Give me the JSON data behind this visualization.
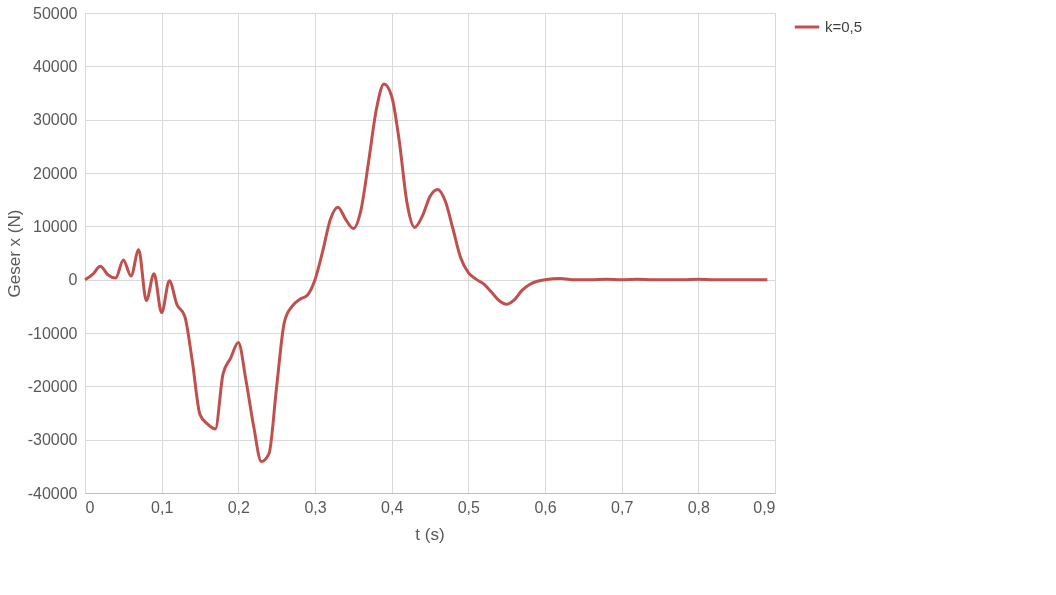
{
  "chart_data": {
    "type": "line",
    "xlabel": "t (s)",
    "ylabel": "Geser x (N)",
    "x": [
      0,
      0.01,
      0.02,
      0.03,
      0.04,
      0.05,
      0.06,
      0.07,
      0.08,
      0.09,
      0.1,
      0.11,
      0.12,
      0.13,
      0.14,
      0.15,
      0.16,
      0.17,
      0.18,
      0.19,
      0.2,
      0.21,
      0.22,
      0.23,
      0.24,
      0.25,
      0.26,
      0.27,
      0.28,
      0.29,
      0.3,
      0.31,
      0.32,
      0.33,
      0.34,
      0.35,
      0.36,
      0.37,
      0.38,
      0.39,
      0.4,
      0.41,
      0.42,
      0.43,
      0.44,
      0.45,
      0.46,
      0.47,
      0.48,
      0.49,
      0.5,
      0.51,
      0.52,
      0.53,
      0.54,
      0.55,
      0.56,
      0.57,
      0.58,
      0.59,
      0.6,
      0.62,
      0.64,
      0.66,
      0.68,
      0.7,
      0.72,
      0.74,
      0.76,
      0.78,
      0.8,
      0.82,
      0.84,
      0.86,
      0.88,
      0.89
    ],
    "series": [
      {
        "name": "k=0,5",
        "color": "#c0504d",
        "values": [
          0,
          1000,
          2500,
          900,
          300,
          3700,
          700,
          5600,
          -3900,
          1100,
          -6200,
          -200,
          -4700,
          -6800,
          -15300,
          -25300,
          -27100,
          -28000,
          -17700,
          -14700,
          -11800,
          -18900,
          -27500,
          -34100,
          -32600,
          -20000,
          -8000,
          -5000,
          -3700,
          -2900,
          0,
          5300,
          11300,
          13600,
          11300,
          9600,
          13100,
          22200,
          31900,
          36700,
          34400,
          25900,
          14400,
          9800,
          11900,
          15600,
          16900,
          14700,
          9500,
          4100,
          1300,
          100,
          -800,
          -2300,
          -3900,
          -4600,
          -3800,
          -2000,
          -900,
          -300,
          0,
          200,
          0,
          0,
          100,
          0,
          100,
          0,
          0,
          0,
          100,
          0,
          0,
          0,
          0,
          0
        ]
      }
    ],
    "xlim": [
      0,
      0.9
    ],
    "xticks": [
      0,
      {
        "value": 0.1,
        "label": "0,1"
      },
      {
        "value": 0.2,
        "label": "0,2"
      },
      {
        "value": 0.3,
        "label": "0,3"
      },
      {
        "value": 0.4,
        "label": "0,4"
      },
      {
        "value": 0.5,
        "label": "0,5"
      },
      {
        "value": 0.6,
        "label": "0,6"
      },
      {
        "value": 0.7,
        "label": "0,7"
      },
      {
        "value": 0.8,
        "label": "0,8"
      },
      {
        "value": 0.9,
        "label": "0,9"
      }
    ],
    "ylim": [
      -40000,
      50000
    ],
    "yticks": [
      -40000,
      -30000,
      -20000,
      -10000,
      0,
      10000,
      20000,
      30000,
      40000,
      50000
    ],
    "grid": true,
    "legend": "right",
    "line_style": "solid",
    "marker": "none"
  }
}
